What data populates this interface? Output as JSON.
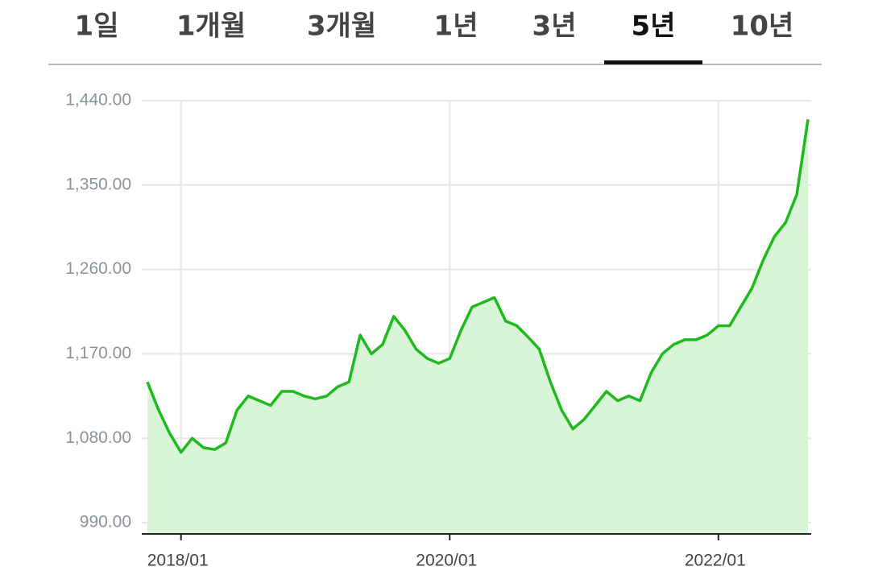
{
  "tabs": {
    "items": [
      "1일",
      "1개월",
      "3개월",
      "1년",
      "3년",
      "5년",
      "10년"
    ],
    "active": 5
  },
  "chart_data": {
    "type": "area",
    "color": "#1db91d",
    "fill": "#d8f5d8",
    "grid": true,
    "x": [
      "2017/10",
      "2017/11",
      "2017/12",
      "2018/01",
      "2018/02",
      "2018/03",
      "2018/04",
      "2018/05",
      "2018/06",
      "2018/07",
      "2018/08",
      "2018/09",
      "2018/10",
      "2018/11",
      "2018/12",
      "2019/01",
      "2019/02",
      "2019/03",
      "2019/04",
      "2019/05",
      "2019/06",
      "2019/07",
      "2019/08",
      "2019/09",
      "2019/10",
      "2019/11",
      "2019/12",
      "2020/01",
      "2020/02",
      "2020/03",
      "2020/04",
      "2020/05",
      "2020/06",
      "2020/07",
      "2020/08",
      "2020/09",
      "2020/10",
      "2020/11",
      "2020/12",
      "2021/01",
      "2021/02",
      "2021/03",
      "2021/04",
      "2021/05",
      "2021/06",
      "2021/07",
      "2021/08",
      "2021/09",
      "2021/10",
      "2021/11",
      "2021/12",
      "2022/01",
      "2022/02",
      "2022/03",
      "2022/04",
      "2022/05",
      "2022/06",
      "2022/07",
      "2022/08",
      "2022/09"
    ],
    "values": [
      1140,
      1110,
      1085,
      1065,
      1080,
      1070,
      1068,
      1075,
      1110,
      1125,
      1120,
      1115,
      1130,
      1130,
      1125,
      1122,
      1125,
      1135,
      1140,
      1190,
      1170,
      1180,
      1210,
      1195,
      1175,
      1165,
      1160,
      1165,
      1195,
      1220,
      1225,
      1230,
      1205,
      1200,
      1188,
      1175,
      1140,
      1110,
      1090,
      1100,
      1115,
      1130,
      1120,
      1125,
      1120,
      1150,
      1170,
      1180,
      1185,
      1185,
      1190,
      1200,
      1200,
      1220,
      1240,
      1270,
      1295,
      1310,
      1340,
      1420
    ],
    "xlim": [
      "2017/10",
      "2022/09"
    ],
    "xticks": [
      "2018/01",
      "2020/01",
      "2022/01"
    ],
    "ylim": [
      978,
      1440
    ],
    "yticks": [
      {
        "value": 990,
        "label": "990.00"
      },
      {
        "value": 1080,
        "label": "1,080.00"
      },
      {
        "value": 1170,
        "label": "1,170.00"
      },
      {
        "value": 1260,
        "label": "1,260.00"
      },
      {
        "value": 1350,
        "label": "1,350.00"
      },
      {
        "value": 1440,
        "label": "1,440.00"
      }
    ]
  }
}
